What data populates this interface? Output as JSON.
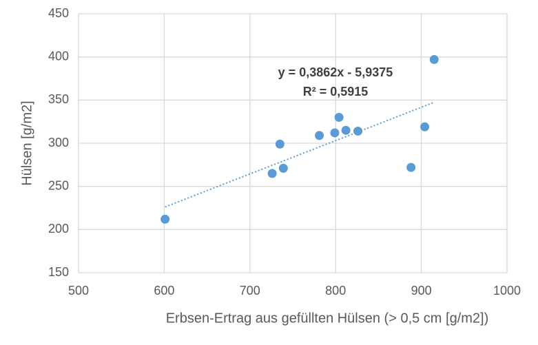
{
  "chart_data": {
    "type": "scatter",
    "x_label": "Erbsen-Ertrag aus gefüllten Hülsen (> 0,5 cm [g/m2])",
    "y_label": "Hülsen [g/m2]",
    "x": [
      601,
      726,
      735,
      739,
      781,
      799,
      804,
      812,
      826,
      888,
      904,
      915
    ],
    "series": [
      {
        "name": "Hülsen",
        "color": "#5b9bd5",
        "values": [
          212,
          265,
          299,
          271,
          309,
          312,
          330,
          315,
          314,
          272,
          319,
          397
        ]
      }
    ],
    "trendline": {
      "slope": 0.3862,
      "intercept": -5.9375,
      "equation": "y = 0,3862x - 5,9375",
      "r2": "R² = 0,5915"
    },
    "xlim": [
      500,
      1000
    ],
    "xticks": [
      500,
      600,
      700,
      800,
      900,
      1000
    ],
    "ylim": [
      150,
      450
    ],
    "yticks": [
      150,
      200,
      250,
      300,
      350,
      400,
      450
    ],
    "grid": true
  }
}
